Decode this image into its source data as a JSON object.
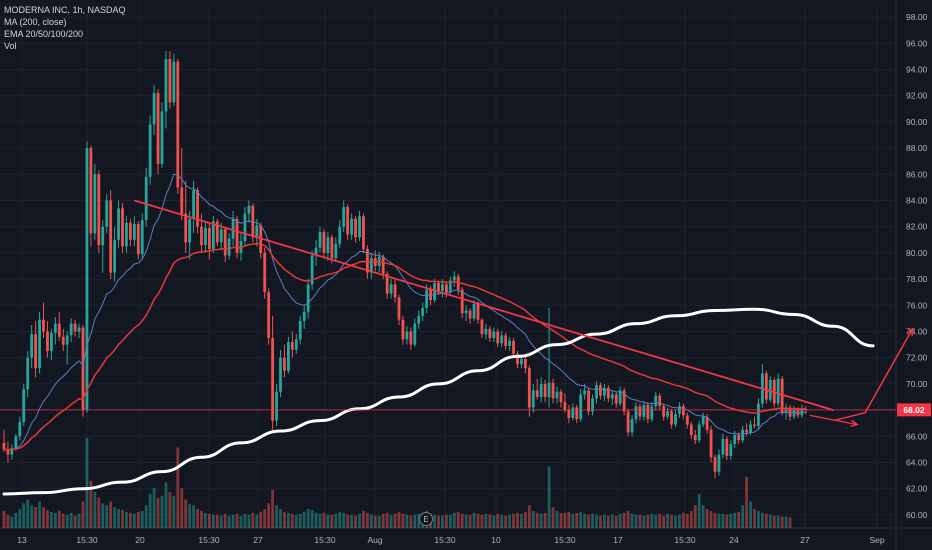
{
  "legend": {
    "symbol_line": "MODERNA INC, 1h, NASDAQ",
    "ma_line": "MA (200, close)",
    "ema_line": "EMA 20/50/100/200",
    "vol_line": "Vol"
  },
  "events": {
    "earnings_marker": "E"
  },
  "colors": {
    "background": "#131722",
    "up": "#26a69a",
    "down": "#ef5350",
    "ma200": "#ffffff",
    "ema_slow": "#e53935",
    "ema_fast": "#5b7fc4",
    "trendline": "#f23645",
    "price_line": "#f23645",
    "price_label_bg": "#f23645"
  },
  "chart_data": {
    "type": "candlestick",
    "title": "",
    "ylim": [
      59,
      99
    ],
    "y_ticks": [
      "60.00",
      "62.00",
      "64.00",
      "66.00",
      "68.00",
      "70.00",
      "72.00",
      "74.00",
      "76.00",
      "78.00",
      "80.00",
      "82.00",
      "84.00",
      "86.00",
      "88.00",
      "90.00",
      "92.00",
      "94.00",
      "96.00",
      "98.00"
    ],
    "x_ticks": [
      "13",
      "15:30",
      "20",
      "15:30",
      "27",
      "15:30",
      "Aug",
      "15:30",
      "10",
      "15:30",
      "17",
      "15:30",
      "24",
      "27",
      "Sep"
    ],
    "last_price": "68.02",
    "last_price_value": 68.02,
    "candles": [
      [
        65.5,
        66.5,
        64.8,
        65.0
      ],
      [
        65.0,
        65.6,
        64.0,
        64.6
      ],
      [
        64.6,
        65.4,
        64.2,
        65.1
      ],
      [
        65.1,
        66.2,
        64.9,
        66.0
      ],
      [
        66.0,
        67.5,
        65.7,
        67.1
      ],
      [
        67.1,
        70.0,
        66.8,
        69.6
      ],
      [
        69.6,
        72.5,
        69.0,
        72.0
      ],
      [
        72.0,
        74.5,
        71.2,
        73.8
      ],
      [
        73.8,
        74.8,
        70.5,
        71.2
      ],
      [
        71.2,
        75.5,
        70.8,
        74.9
      ],
      [
        74.9,
        76.2,
        73.5,
        74.0
      ],
      [
        74.0,
        74.8,
        72.0,
        72.5
      ],
      [
        72.5,
        74.2,
        71.8,
        73.9
      ],
      [
        73.9,
        75.1,
        73.0,
        74.6
      ],
      [
        74.6,
        75.5,
        73.3,
        73.6
      ],
      [
        73.6,
        74.2,
        72.5,
        73.0
      ],
      [
        73.0,
        74.0,
        71.5,
        73.7
      ],
      [
        73.7,
        75.0,
        73.2,
        74.6
      ],
      [
        74.6,
        74.9,
        73.6,
        74.0
      ],
      [
        74.0,
        74.6,
        73.5,
        74.3
      ],
      [
        74.3,
        74.5,
        67.5,
        68.0
      ],
      [
        68.0,
        88.5,
        67.8,
        88.0
      ],
      [
        88.0,
        88.2,
        80.5,
        81.5
      ],
      [
        81.5,
        86.8,
        81.0,
        86.0
      ],
      [
        86.0,
        86.3,
        80.0,
        80.6
      ],
      [
        80.6,
        82.5,
        78.5,
        82.0
      ],
      [
        82.0,
        84.5,
        81.5,
        84.0
      ],
      [
        84.0,
        84.8,
        78.0,
        78.5
      ],
      [
        78.5,
        82.0,
        77.8,
        81.0
      ],
      [
        81.0,
        84.0,
        80.4,
        83.4
      ],
      [
        83.4,
        83.8,
        80.0,
        80.5
      ],
      [
        80.5,
        82.8,
        80.0,
        82.3
      ],
      [
        82.3,
        82.6,
        80.5,
        81.0
      ],
      [
        81.0,
        82.8,
        80.5,
        82.2
      ],
      [
        82.2,
        82.4,
        79.5,
        79.9
      ],
      [
        79.9,
        83.0,
        79.5,
        82.5
      ],
      [
        82.5,
        86.5,
        82.0,
        85.8
      ],
      [
        85.8,
        90.5,
        85.2,
        89.8
      ],
      [
        89.8,
        92.8,
        89.0,
        92.2
      ],
      [
        92.2,
        92.5,
        86.0,
        86.8
      ],
      [
        86.8,
        91.5,
        86.5,
        90.8
      ],
      [
        90.8,
        95.4,
        89.5,
        94.8
      ],
      [
        94.8,
        95.4,
        91.0,
        91.5
      ],
      [
        91.5,
        95.2,
        91.2,
        94.6
      ],
      [
        94.6,
        94.8,
        84.5,
        85.0
      ],
      [
        85.0,
        88.0,
        82.5,
        83.0
      ],
      [
        83.0,
        85.5,
        80.0,
        80.8
      ],
      [
        80.8,
        83.2,
        79.5,
        82.6
      ],
      [
        82.6,
        85.5,
        81.5,
        84.8
      ],
      [
        84.8,
        85.0,
        81.5,
        82.0
      ],
      [
        82.0,
        83.0,
        80.0,
        80.6
      ],
      [
        80.6,
        82.4,
        80.0,
        81.9
      ],
      [
        81.9,
        82.2,
        79.5,
        80.3
      ],
      [
        80.3,
        82.8,
        80.0,
        82.4
      ],
      [
        82.4,
        82.6,
        80.5,
        80.8
      ],
      [
        80.8,
        82.3,
        80.2,
        81.8
      ],
      [
        81.8,
        82.0,
        79.3,
        79.8
      ],
      [
        79.8,
        81.5,
        79.5,
        81.1
      ],
      [
        81.1,
        83.2,
        80.5,
        82.6
      ],
      [
        82.6,
        82.8,
        79.6,
        80.0
      ],
      [
        80.0,
        81.5,
        79.4,
        80.9
      ],
      [
        80.9,
        83.5,
        80.5,
        83.0
      ],
      [
        83.0,
        84.0,
        82.3,
        83.6
      ],
      [
        83.6,
        83.8,
        80.8,
        81.2
      ],
      [
        81.2,
        82.6,
        80.5,
        82.1
      ],
      [
        82.1,
        82.3,
        79.6,
        80.0
      ],
      [
        80.0,
        80.4,
        76.5,
        77.0
      ],
      [
        77.0,
        77.3,
        73.0,
        73.5
      ],
      [
        73.5,
        75.2,
        66.5,
        67.2
      ],
      [
        67.2,
        70.0,
        66.8,
        69.4
      ],
      [
        69.4,
        72.6,
        69.0,
        72.0
      ],
      [
        72.0,
        73.0,
        70.5,
        71.0
      ],
      [
        71.0,
        73.6,
        70.8,
        73.2
      ],
      [
        73.2,
        74.0,
        72.0,
        72.6
      ],
      [
        72.6,
        73.8,
        72.3,
        73.4
      ],
      [
        73.4,
        75.2,
        73.0,
        74.8
      ],
      [
        74.8,
        76.0,
        74.2,
        75.5
      ],
      [
        75.5,
        78.0,
        75.0,
        77.6
      ],
      [
        77.6,
        80.2,
        77.2,
        79.8
      ],
      [
        79.8,
        81.0,
        79.0,
        80.4
      ],
      [
        80.4,
        82.0,
        80.0,
        81.6
      ],
      [
        81.6,
        81.8,
        79.6,
        80.0
      ],
      [
        80.0,
        81.6,
        79.4,
        81.2
      ],
      [
        81.2,
        81.4,
        79.2,
        79.6
      ],
      [
        79.6,
        81.2,
        79.3,
        80.7
      ],
      [
        80.7,
        82.5,
        80.4,
        82.0
      ],
      [
        82.0,
        84.0,
        81.6,
        83.5
      ],
      [
        83.5,
        83.7,
        81.0,
        81.4
      ],
      [
        81.4,
        83.0,
        81.0,
        82.6
      ],
      [
        82.6,
        82.8,
        80.8,
        81.2
      ],
      [
        81.2,
        83.2,
        80.9,
        82.8
      ],
      [
        82.8,
        83.0,
        80.0,
        80.3
      ],
      [
        80.3,
        80.6,
        78.0,
        78.5
      ],
      [
        78.5,
        80.0,
        78.0,
        79.6
      ],
      [
        79.6,
        80.2,
        78.6,
        79.0
      ],
      [
        79.0,
        80.1,
        78.5,
        79.7
      ],
      [
        79.7,
        79.9,
        78.0,
        78.4
      ],
      [
        78.4,
        78.6,
        76.5,
        76.9
      ],
      [
        76.9,
        78.0,
        76.5,
        77.6
      ],
      [
        77.6,
        78.0,
        76.2,
        76.6
      ],
      [
        76.6,
        76.8,
        74.5,
        74.9
      ],
      [
        74.9,
        75.2,
        73.0,
        73.4
      ],
      [
        73.4,
        74.4,
        73.0,
        74.0
      ],
      [
        74.0,
        74.3,
        72.6,
        73.0
      ],
      [
        73.0,
        75.0,
        72.8,
        74.6
      ],
      [
        74.6,
        75.6,
        74.2,
        75.2
      ],
      [
        75.2,
        76.2,
        74.8,
        75.8
      ],
      [
        75.8,
        77.6,
        75.4,
        77.2
      ],
      [
        77.2,
        77.5,
        76.0,
        76.4
      ],
      [
        76.4,
        78.0,
        76.2,
        77.7
      ],
      [
        77.7,
        77.9,
        76.8,
        77.1
      ],
      [
        77.1,
        78.0,
        76.6,
        77.6
      ],
      [
        77.6,
        77.8,
        76.6,
        77.0
      ],
      [
        77.0,
        78.2,
        76.8,
        77.9
      ],
      [
        77.9,
        78.6,
        77.4,
        78.2
      ],
      [
        78.2,
        78.4,
        76.8,
        77.2
      ],
      [
        77.2,
        77.4,
        75.0,
        75.4
      ],
      [
        75.4,
        76.0,
        74.8,
        75.6
      ],
      [
        75.6,
        75.8,
        74.6,
        75.0
      ],
      [
        75.0,
        76.4,
        74.8,
        76.1
      ],
      [
        76.1,
        76.3,
        74.6,
        74.9
      ],
      [
        74.9,
        75.0,
        73.5,
        73.8
      ],
      [
        73.8,
        74.6,
        73.4,
        74.2
      ],
      [
        74.2,
        74.4,
        73.2,
        73.5
      ],
      [
        73.5,
        74.3,
        73.2,
        74.0
      ],
      [
        74.0,
        74.2,
        72.8,
        73.1
      ],
      [
        73.1,
        74.0,
        72.8,
        73.7
      ],
      [
        73.7,
        73.9,
        72.6,
        72.9
      ],
      [
        72.9,
        73.6,
        72.5,
        73.3
      ],
      [
        73.3,
        73.5,
        72.0,
        72.3
      ],
      [
        72.3,
        72.5,
        71.2,
        71.5
      ],
      [
        71.5,
        72.2,
        71.2,
        71.9
      ],
      [
        71.9,
        72.1,
        70.8,
        71.2
      ],
      [
        71.2,
        71.4,
        67.5,
        68.2
      ],
      [
        68.2,
        70.0,
        67.8,
        69.5
      ],
      [
        69.5,
        70.4,
        68.8,
        69.0
      ],
      [
        69.0,
        70.5,
        68.6,
        70.0
      ],
      [
        70.0,
        70.3,
        68.6,
        69.0
      ],
      [
        69.0,
        75.8,
        68.2,
        70.1
      ],
      [
        70.1,
        70.4,
        68.5,
        68.9
      ],
      [
        68.9,
        69.8,
        68.5,
        69.4
      ],
      [
        69.4,
        69.6,
        68.2,
        68.6
      ],
      [
        68.6,
        69.3,
        67.8,
        68.0
      ],
      [
        68.0,
        68.4,
        67.0,
        67.4
      ],
      [
        67.4,
        68.5,
        67.2,
        68.2
      ],
      [
        68.2,
        68.4,
        67.0,
        67.3
      ],
      [
        67.3,
        69.6,
        67.1,
        69.2
      ],
      [
        69.2,
        70.0,
        68.8,
        69.5
      ],
      [
        69.5,
        69.7,
        67.6,
        67.9
      ],
      [
        67.9,
        69.2,
        67.6,
        68.9
      ],
      [
        68.9,
        70.2,
        68.5,
        69.9
      ],
      [
        69.9,
        70.1,
        68.8,
        69.1
      ],
      [
        69.1,
        70.0,
        68.7,
        69.7
      ],
      [
        69.7,
        69.9,
        68.6,
        68.9
      ],
      [
        68.9,
        69.5,
        68.4,
        69.2
      ],
      [
        69.2,
        69.4,
        68.2,
        68.5
      ],
      [
        68.5,
        69.8,
        68.3,
        69.5
      ],
      [
        69.5,
        69.7,
        67.6,
        67.9
      ],
      [
        67.9,
        68.1,
        66.0,
        66.3
      ],
      [
        66.3,
        67.6,
        66.0,
        67.3
      ],
      [
        67.3,
        68.6,
        67.0,
        68.3
      ],
      [
        68.3,
        68.5,
        67.2,
        67.5
      ],
      [
        67.5,
        68.6,
        67.2,
        68.4
      ],
      [
        68.4,
        68.6,
        67.0,
        67.3
      ],
      [
        67.3,
        68.6,
        67.1,
        68.3
      ],
      [
        68.3,
        69.4,
        68.0,
        69.1
      ],
      [
        69.1,
        69.3,
        68.0,
        68.3
      ],
      [
        68.3,
        68.5,
        67.2,
        67.5
      ],
      [
        67.5,
        68.2,
        67.3,
        67.9
      ],
      [
        67.9,
        68.1,
        66.6,
        66.9
      ],
      [
        66.9,
        68.0,
        66.7,
        67.7
      ],
      [
        67.7,
        68.6,
        67.4,
        68.3
      ],
      [
        68.3,
        68.5,
        67.3,
        67.6
      ],
      [
        67.6,
        67.8,
        66.6,
        66.9
      ],
      [
        66.9,
        67.1,
        65.8,
        66.1
      ],
      [
        66.1,
        66.5,
        65.4,
        65.7
      ],
      [
        65.7,
        67.2,
        65.5,
        66.9
      ],
      [
        66.9,
        67.8,
        66.7,
        67.5
      ],
      [
        67.5,
        67.7,
        66.2,
        66.5
      ],
      [
        66.5,
        66.8,
        64.0,
        64.4
      ],
      [
        64.4,
        64.6,
        62.8,
        63.3
      ],
      [
        63.3,
        65.0,
        63.0,
        64.6
      ],
      [
        64.6,
        66.2,
        64.3,
        65.8
      ],
      [
        65.8,
        66.0,
        64.2,
        64.5
      ],
      [
        64.5,
        65.7,
        64.2,
        65.4
      ],
      [
        65.4,
        66.4,
        65.1,
        66.1
      ],
      [
        66.1,
        66.3,
        65.4,
        65.7
      ],
      [
        65.7,
        66.8,
        65.5,
        66.5
      ],
      [
        66.5,
        67.0,
        66.0,
        66.3
      ],
      [
        66.3,
        67.2,
        66.1,
        66.9
      ],
      [
        66.9,
        67.5,
        66.6,
        66.8
      ],
      [
        66.8,
        68.9,
        66.6,
        68.5
      ],
      [
        68.5,
        71.5,
        68.2,
        70.8
      ],
      [
        70.8,
        71.0,
        68.5,
        68.8
      ],
      [
        68.8,
        70.6,
        68.6,
        70.3
      ],
      [
        70.3,
        70.5,
        68.2,
        68.5
      ],
      [
        68.5,
        70.8,
        68.3,
        70.4
      ],
      [
        70.4,
        70.6,
        67.6,
        67.8
      ],
      [
        67.8,
        68.5,
        67.3,
        68.2
      ],
      [
        68.2,
        68.4,
        67.2,
        67.5
      ],
      [
        67.5,
        68.3,
        67.3,
        68.0
      ],
      [
        68.0,
        68.2,
        67.4,
        67.6
      ],
      [
        67.6,
        68.4,
        67.4,
        68.1
      ],
      [
        68.1,
        68.3,
        67.7,
        68.02
      ]
    ],
    "volumes": [
      1.8,
      1.4,
      1.2,
      1.6,
      2.0,
      2.6,
      3.0,
      2.4,
      2.2,
      2.8,
      2.2,
      1.9,
      1.7,
      1.6,
      1.8,
      1.5,
      1.4,
      1.6,
      1.3,
      1.5,
      2.8,
      9.5,
      5.0,
      3.8,
      3.2,
      2.6,
      2.4,
      2.8,
      2.2,
      2.0,
      1.9,
      1.7,
      1.6,
      1.5,
      1.7,
      1.8,
      2.4,
      3.6,
      4.2,
      3.2,
      3.4,
      4.8,
      3.8,
      3.4,
      8.5,
      4.2,
      3.0,
      2.5,
      2.4,
      2.0,
      1.8,
      1.6,
      1.5,
      1.4,
      1.4,
      1.3,
      1.5,
      1.3,
      1.4,
      1.5,
      1.3,
      1.5,
      1.4,
      1.6,
      1.4,
      1.7,
      2.0,
      2.6,
      4.0,
      2.4,
      2.0,
      1.7,
      1.6,
      1.5,
      1.4,
      1.5,
      1.7,
      2.0,
      1.9,
      1.6,
      1.5,
      1.6,
      1.4,
      1.4,
      1.5,
      1.7,
      1.6,
      1.4,
      1.4,
      1.3,
      1.5,
      1.8,
      1.6,
      1.4,
      1.3,
      1.3,
      1.5,
      1.6,
      1.4,
      1.5,
      1.7,
      1.5,
      1.4,
      1.3,
      1.4,
      1.5,
      1.6,
      1.8,
      1.5,
      1.4,
      1.3,
      1.3,
      1.4,
      1.4,
      1.6,
      1.7,
      1.5,
      1.4,
      1.4,
      1.6,
      1.5,
      1.4,
      1.5,
      1.4,
      1.3,
      1.5,
      1.4,
      1.3,
      1.4,
      1.5,
      1.6,
      1.5,
      1.7,
      2.4,
      1.8,
      1.6,
      1.5,
      1.6,
      6.5,
      2.2,
      1.8,
      1.6,
      1.6,
      1.7,
      1.5,
      1.6,
      1.7,
      1.5,
      1.4,
      1.5,
      1.4,
      1.3,
      1.4,
      1.3,
      1.4,
      1.3,
      1.5,
      1.6,
      1.8,
      1.5,
      1.4,
      1.4,
      1.3,
      1.4,
      1.5,
      1.4,
      1.5,
      1.3,
      1.5,
      1.4,
      1.3,
      1.4,
      1.6,
      1.5,
      1.8,
      2.4,
      3.6,
      2.4,
      2.0,
      1.8,
      1.6,
      1.5,
      1.5,
      1.4,
      1.5,
      1.6,
      1.7,
      2.4,
      5.4,
      2.8,
      2.0,
      1.8,
      1.6,
      1.5,
      1.4,
      1.3,
      1.3,
      1.2,
      1.2,
      1.1
    ],
    "ma200_points": [
      [
        0,
        61.6
      ],
      [
        10,
        61.7
      ],
      [
        20,
        62.0
      ],
      [
        30,
        62.5
      ],
      [
        40,
        63.3
      ],
      [
        50,
        64.4
      ],
      [
        60,
        65.5
      ],
      [
        70,
        66.4
      ],
      [
        80,
        67.2
      ],
      [
        90,
        68.1
      ],
      [
        100,
        69.0
      ],
      [
        110,
        70.0
      ],
      [
        120,
        71.0
      ],
      [
        130,
        72.1
      ],
      [
        140,
        73.0
      ],
      [
        150,
        73.8
      ],
      [
        160,
        74.6
      ],
      [
        170,
        75.2
      ],
      [
        180,
        75.6
      ],
      [
        190,
        75.7
      ],
      [
        200,
        75.3
      ],
      [
        210,
        74.4
      ],
      [
        220,
        72.9
      ]
    ],
    "trendline": [
      [
        33,
        84.0
      ],
      [
        210,
        68.0
      ]
    ],
    "projection_arrow": [
      [
        210,
        67.2
      ],
      [
        218,
        67.8
      ],
      [
        230,
        74.2
      ]
    ],
    "price_arrow": [
      [
        204,
        67.6
      ],
      [
        216,
        66.9
      ]
    ]
  }
}
